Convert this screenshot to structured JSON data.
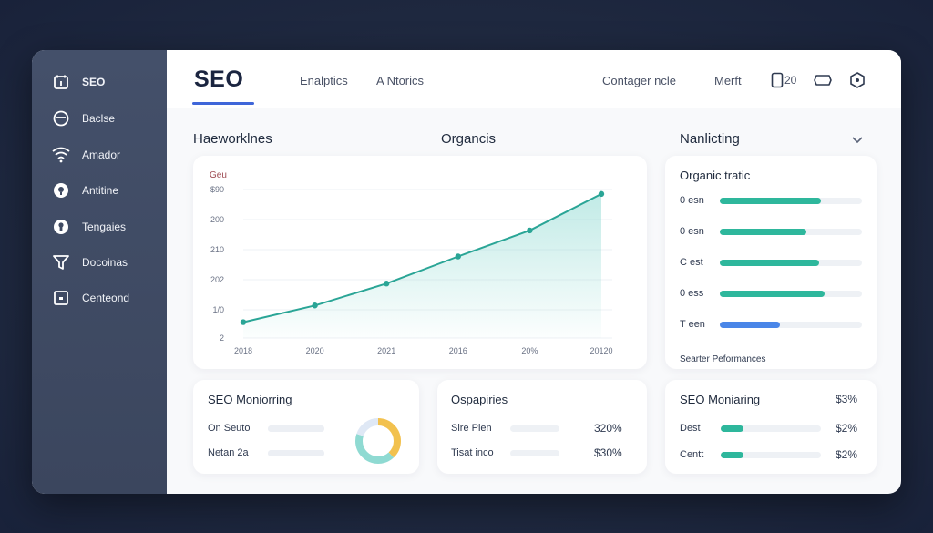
{
  "sidebar": {
    "items": [
      {
        "label": "SEO",
        "icon": "calendar-icon"
      },
      {
        "label": "Baclse",
        "icon": "circle-minus-icon"
      },
      {
        "label": "Amador",
        "icon": "wifi-icon"
      },
      {
        "label": "Antitine",
        "icon": "location-pin-icon"
      },
      {
        "label": "Tengaies",
        "icon": "keyhole-icon"
      },
      {
        "label": "Docoinas",
        "icon": "filter-icon"
      },
      {
        "label": "Centeond",
        "icon": "square-icon"
      }
    ]
  },
  "header": {
    "logo": "SEO",
    "nav": [
      "Enalptics",
      "A Ntorics"
    ],
    "right_nav": [
      "Contager ncle",
      "Merft"
    ],
    "counter": "20"
  },
  "sections": {
    "left_title": "Haeworklnes",
    "center_title": "Organcis",
    "right_title": "Nanlicting"
  },
  "line_chart": {
    "legend": "Geu",
    "y_ticks": [
      "$90",
      "200",
      "210",
      "202",
      "1/0",
      "2"
    ],
    "x_ticks": [
      "2018",
      "2020",
      "2021",
      "2016",
      "20%",
      "20120"
    ]
  },
  "chart_data": {
    "type": "area",
    "title": "Organcis",
    "xlabel": "",
    "ylabel": "",
    "x": [
      "2018",
      "2020",
      "2021",
      "2016",
      "20%",
      "20120"
    ],
    "series": [
      {
        "name": "Geu",
        "values": [
          1.2,
          2.0,
          3.05,
          4.35,
          5.6,
          7.35
        ]
      }
    ],
    "ylim": [
      0,
      8
    ],
    "grid": true
  },
  "organic_traffic": {
    "title": "Organic tratic",
    "bars": [
      {
        "label": "0 esn",
        "value": 0.71,
        "color": "#2eb79c"
      },
      {
        "label": "0 esn",
        "value": 0.61,
        "color": "#2eb79c"
      },
      {
        "label": "C est",
        "value": 0.7,
        "color": "#2eb79c"
      },
      {
        "label": "0 ess",
        "value": 0.74,
        "color": "#2eb79c"
      },
      {
        "label": "T een",
        "value": 0.42,
        "color": "#4a86e8"
      }
    ],
    "footer": "Searter Peformances"
  },
  "seo_monitoring_left": {
    "title": "SEO Moniorring",
    "rows": [
      {
        "label": "On Seuto",
        "value": 1.0
      },
      {
        "label": "Netan 2a",
        "value": 1.0
      }
    ],
    "donut": [
      {
        "value": 0.38,
        "color": "#f2c14e"
      },
      {
        "value": 0.42,
        "color": "#8fdad2"
      },
      {
        "value": 0.2,
        "color": "#dfe8f5"
      }
    ]
  },
  "ospapiries": {
    "title": "Ospapiries",
    "rows": [
      {
        "label": "Sire Pien",
        "value": "320%"
      },
      {
        "label": "Tisat inco",
        "value": "$30%"
      }
    ]
  },
  "seo_monitoring_right": {
    "title": "SEO Moniaring",
    "title_value": "$3%",
    "rows": [
      {
        "label": "Dest",
        "fill": 0.23,
        "value": "$2%"
      },
      {
        "label": "Centt",
        "fill": 0.23,
        "value": "$2%"
      }
    ]
  },
  "colors": {
    "accent": "#3f66d9",
    "teal": "#2eb79c",
    "blue": "#4a86e8",
    "sidebar": "#3f4a62"
  }
}
